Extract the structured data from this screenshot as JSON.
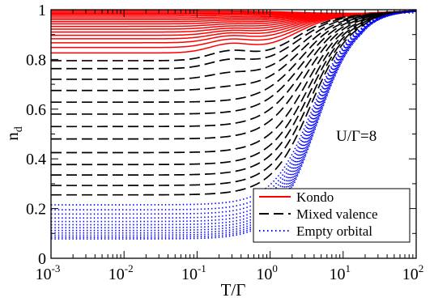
{
  "chart_data": {
    "type": "line",
    "title": "",
    "xlabel": "T/Γ",
    "ylabel": "n",
    "ylabel_subscript": "d",
    "xscale": "log",
    "xlim": [
      0.001,
      100
    ],
    "ylim": [
      0,
      1
    ],
    "x_ticks": [
      {
        "base": "10",
        "exp": "-3"
      },
      {
        "base": "10",
        "exp": "-2"
      },
      {
        "base": "10",
        "exp": "-1"
      },
      {
        "base": "10",
        "exp": "0"
      },
      {
        "base": "10",
        "exp": "1"
      },
      {
        "base": "10",
        "exp": "2"
      }
    ],
    "y_ticks": [
      "0",
      "0.2",
      "0.4",
      "0.6",
      "0.8",
      "1"
    ],
    "y_tick_values": [
      0,
      0.2,
      0.4,
      0.6,
      0.8,
      1
    ],
    "annotation": "U/Γ=8",
    "legend_position": "bottom-right",
    "grid": false,
    "legend": [
      {
        "label": "Kondo",
        "color": "#ff0000",
        "style": "solid"
      },
      {
        "label": "Mixed valence",
        "color": "#000000",
        "style": "dashed"
      },
      {
        "label": "Empty orbital",
        "color": "#0000ff",
        "style": "dotted"
      }
    ],
    "series": [
      {
        "group": "Kondo",
        "n0": 0.995
      },
      {
        "group": "Kondo",
        "n0": 0.99
      },
      {
        "group": "Kondo",
        "n0": 0.985
      },
      {
        "group": "Kondo",
        "n0": 0.98
      },
      {
        "group": "Kondo",
        "n0": 0.974
      },
      {
        "group": "Kondo",
        "n0": 0.967
      },
      {
        "group": "Kondo",
        "n0": 0.96
      },
      {
        "group": "Kondo",
        "n0": 0.952
      },
      {
        "group": "Kondo",
        "n0": 0.943
      },
      {
        "group": "Kondo",
        "n0": 0.933
      },
      {
        "group": "Kondo",
        "n0": 0.922
      },
      {
        "group": "Kondo",
        "n0": 0.91
      },
      {
        "group": "Kondo",
        "n0": 0.897
      },
      {
        "group": "Kondo",
        "n0": 0.883
      },
      {
        "group": "Kondo",
        "n0": 0.867
      },
      {
        "group": "Kondo",
        "n0": 0.848
      },
      {
        "group": "Kondo",
        "n0": 0.826
      },
      {
        "group": "Mixed valence",
        "n0": 0.795
      },
      {
        "group": "Mixed valence",
        "n0": 0.763
      },
      {
        "group": "Mixed valence",
        "n0": 0.72
      },
      {
        "group": "Mixed valence",
        "n0": 0.675
      },
      {
        "group": "Mixed valence",
        "n0": 0.628
      },
      {
        "group": "Mixed valence",
        "n0": 0.58
      },
      {
        "group": "Mixed valence",
        "n0": 0.53
      },
      {
        "group": "Mixed valence",
        "n0": 0.48
      },
      {
        "group": "Mixed valence",
        "n0": 0.425
      },
      {
        "group": "Mixed valence",
        "n0": 0.377
      },
      {
        "group": "Mixed valence",
        "n0": 0.335
      },
      {
        "group": "Mixed valence",
        "n0": 0.293
      },
      {
        "group": "Mixed valence",
        "n0": 0.255
      },
      {
        "group": "Empty orbital",
        "n0": 0.215
      },
      {
        "group": "Empty orbital",
        "n0": 0.195
      },
      {
        "group": "Empty orbital",
        "n0": 0.178
      },
      {
        "group": "Empty orbital",
        "n0": 0.162
      },
      {
        "group": "Empty orbital",
        "n0": 0.148
      },
      {
        "group": "Empty orbital",
        "n0": 0.135
      },
      {
        "group": "Empty orbital",
        "n0": 0.123
      },
      {
        "group": "Empty orbital",
        "n0": 0.112
      },
      {
        "group": "Empty orbital",
        "n0": 0.102
      },
      {
        "group": "Empty orbital",
        "n0": 0.093
      },
      {
        "group": "Empty orbital",
        "n0": 0.085
      },
      {
        "group": "Empty orbital",
        "n0": 0.078
      }
    ]
  }
}
